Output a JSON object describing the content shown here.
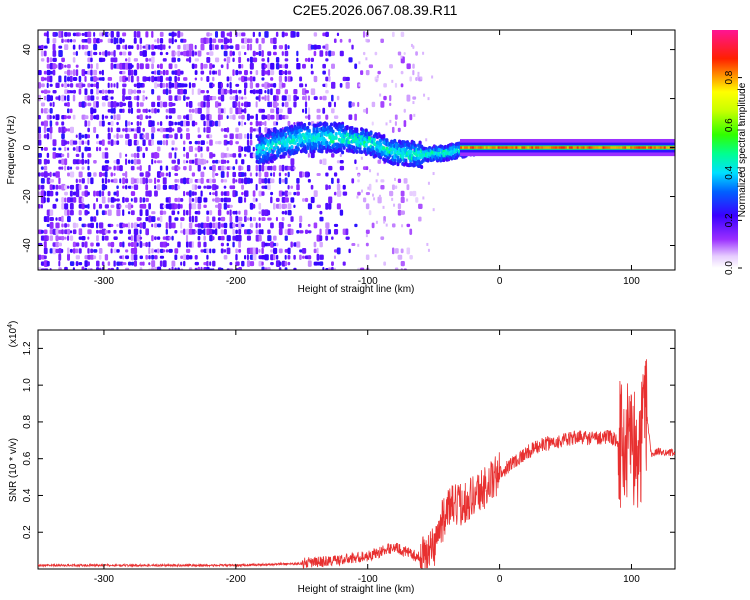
{
  "title": "C2E5.2026.067.08.39.R11",
  "chart_data": [
    {
      "type": "heatmap",
      "xlabel": "Height of straight line (km)",
      "ylabel": "Frequency (Hz)",
      "xlim": [
        -350,
        133
      ],
      "ylim": [
        -50,
        48
      ],
      "xticks": [
        -300,
        -200,
        -100,
        0,
        100
      ],
      "yticks": [
        -40,
        -20,
        0,
        20,
        40
      ],
      "colorbar": {
        "label": "Normalized spectral amplitude",
        "range": [
          0,
          1
        ],
        "ticks": [
          0.0,
          0.2,
          0.4,
          0.6,
          0.8
        ]
      },
      "description_points": {
        "noise_region_x": [
          -350,
          -65
        ],
        "ridge_x": [
          -185,
          -20
        ],
        "ridge_freq_approx": [
          [
            -185,
            -1
          ],
          [
            -150,
            4
          ],
          [
            -120,
            4
          ],
          [
            -100,
            2
          ],
          [
            -80,
            -2
          ],
          [
            -60,
            -3
          ],
          [
            -40,
            -2
          ],
          [
            -20,
            0
          ]
        ],
        "tone_x": [
          -30,
          133
        ],
        "tone_freq": 0
      }
    },
    {
      "type": "line",
      "xlabel": "Height of straight line (km)",
      "ylabel": "SNR (10 * v/v)",
      "scale_label": "(x10",
      "scale_exp": "4",
      "scale_close": ")",
      "xlim": [
        -350,
        133
      ],
      "ylim": [
        0,
        1.3
      ],
      "xticks": [
        -300,
        -200,
        -100,
        0,
        100
      ],
      "yticks": [
        0.2,
        0.4,
        0.6,
        0.8,
        1.0,
        1.2
      ],
      "line_color": "#e83030",
      "series": [
        {
          "name": "",
          "x": [
            -350,
            -300,
            -250,
            -200,
            -150,
            -120,
            -100,
            -80,
            -70,
            -60,
            -50,
            -40,
            -30,
            -20,
            -10,
            0,
            10,
            20,
            30,
            40,
            50,
            60,
            70,
            80,
            90,
            95,
            100,
            105,
            110,
            115,
            120,
            133
          ],
          "y": [
            0.02,
            0.02,
            0.02,
            0.02,
            0.03,
            0.05,
            0.07,
            0.12,
            0.09,
            0.06,
            0.12,
            0.33,
            0.35,
            0.4,
            0.45,
            0.52,
            0.58,
            0.63,
            0.67,
            0.69,
            0.7,
            0.72,
            0.71,
            0.72,
            0.7,
            0.65,
            0.8,
            0.45,
            0.95,
            0.62,
            0.64,
            0.63
          ]
        }
      ]
    }
  ]
}
